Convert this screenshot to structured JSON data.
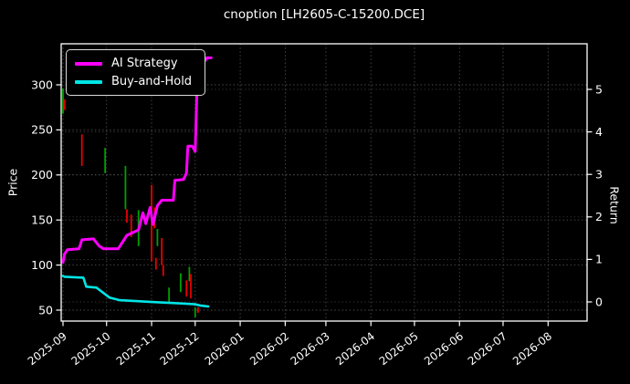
{
  "title": "cnoption [LH2605-C-15200.DCE]",
  "legend": {
    "items": [
      {
        "label": "AI Strategy",
        "color": "#ff00ff"
      },
      {
        "label": "Buy-and-Hold",
        "color": "#00e5e5"
      }
    ]
  },
  "colors": {
    "background": "#000000",
    "foreground": "#ffffff",
    "grid": "#4a4a4a",
    "ai_strategy_line": "#ff00ff",
    "buy_and_hold_line": "#00e5e5",
    "bar_up": "#00a000",
    "bar_down": "#e80000"
  },
  "chart_data": {
    "type": "line",
    "subtype": "equity curves with high-low price bars (candlestick wicks)",
    "title": "cnoption [LH2605-C-15200.DCE]",
    "x_axis": {
      "unit": "date",
      "tick_labels": [
        "2025-09",
        "2025-10",
        "2025-11",
        "2025-12",
        "2026-01",
        "2026-02",
        "2026-03",
        "2026-04",
        "2026-05",
        "2026-06",
        "2026-07",
        "2026-08"
      ],
      "tick_label_rotation_deg": -38
    },
    "y_left": {
      "label": "Price",
      "ticks": [
        50,
        100,
        150,
        200,
        250,
        300
      ],
      "range": [
        38,
        345
      ]
    },
    "y_right": {
      "label": "Return",
      "ticks": [
        0,
        1,
        2,
        3,
        4,
        5
      ],
      "range": [
        -0.45,
        6.08
      ]
    },
    "grid": "dotted, both axes tick sets",
    "legend_position": "upper-left",
    "series": [
      {
        "name": "AI Strategy",
        "axis": "left-price-units",
        "color": "#ff00ff",
        "points": [
          [
            "2025-09-01",
            103
          ],
          [
            "2025-09-02",
            112
          ],
          [
            "2025-09-04",
            117
          ],
          [
            "2025-09-12",
            118
          ],
          [
            "2025-09-14",
            128
          ],
          [
            "2025-09-22",
            129
          ],
          [
            "2025-09-26",
            121
          ],
          [
            "2025-09-29",
            118
          ],
          [
            "2025-10-09",
            118
          ],
          [
            "2025-10-15",
            133
          ],
          [
            "2025-10-19",
            136
          ],
          [
            "2025-10-23",
            139
          ],
          [
            "2025-10-26",
            158
          ],
          [
            "2025-10-28",
            146
          ],
          [
            "2025-10-31",
            164
          ],
          [
            "2025-11-02",
            145
          ],
          [
            "2025-11-05",
            166
          ],
          [
            "2025-11-08",
            172
          ],
          [
            "2025-11-16",
            172
          ],
          [
            "2025-11-17",
            194
          ],
          [
            "2025-11-23",
            195
          ],
          [
            "2025-11-25",
            202
          ],
          [
            "2025-11-26",
            232
          ],
          [
            "2025-11-29",
            232
          ],
          [
            "2025-12-01",
            226
          ],
          [
            "2025-12-02",
            280
          ],
          [
            "2025-12-03",
            325
          ],
          [
            "2025-12-08",
            327
          ],
          [
            "2025-12-09",
            330
          ],
          [
            "2025-12-12",
            330
          ]
        ]
      },
      {
        "name": "Buy-and-Hold",
        "axis": "left-price-units",
        "color": "#00e5e5",
        "points": [
          [
            "2025-09-01",
            88
          ],
          [
            "2025-09-02",
            87
          ],
          [
            "2025-09-15",
            86
          ],
          [
            "2025-09-17",
            76
          ],
          [
            "2025-09-24",
            75
          ],
          [
            "2025-10-03",
            64
          ],
          [
            "2025-10-10",
            61
          ],
          [
            "2025-11-01",
            59
          ],
          [
            "2025-11-20",
            57.5
          ],
          [
            "2025-12-01",
            56.5
          ],
          [
            "2025-12-05",
            55
          ],
          [
            "2025-12-10",
            54
          ]
        ]
      }
    ],
    "price_bars": [
      {
        "date": "2025-09-01",
        "dir": "up",
        "high": 296,
        "low": 268
      },
      {
        "date": "2025-09-02",
        "dir": "down",
        "high": 284,
        "low": 272
      },
      {
        "date": "2025-09-14",
        "dir": "down",
        "high": 245,
        "low": 210
      },
      {
        "date": "2025-09-30",
        "dir": "up",
        "high": 230,
        "low": 202
      },
      {
        "date": "2025-10-14",
        "dir": "up",
        "high": 210,
        "low": 162
      },
      {
        "date": "2025-10-15",
        "dir": "down",
        "high": 162,
        "low": 147
      },
      {
        "date": "2025-10-18",
        "dir": "down",
        "high": 156,
        "low": 131
      },
      {
        "date": "2025-10-23",
        "dir": "up",
        "high": 161,
        "low": 121
      },
      {
        "date": "2025-11-01",
        "dir": "down",
        "high": 189,
        "low": 104
      },
      {
        "date": "2025-11-03",
        "dir": "down",
        "high": 164,
        "low": 141
      },
      {
        "date": "2025-11-04",
        "dir": "down",
        "high": 108,
        "low": 95
      },
      {
        "date": "2025-11-05",
        "dir": "up",
        "high": 140,
        "low": 121
      },
      {
        "date": "2025-11-08",
        "dir": "down",
        "high": 130,
        "low": 100
      },
      {
        "date": "2025-11-09",
        "dir": "down",
        "high": 100,
        "low": 88
      },
      {
        "date": "2025-11-13",
        "dir": "up",
        "high": 75,
        "low": 58
      },
      {
        "date": "2025-11-21",
        "dir": "up",
        "high": 91,
        "low": 70
      },
      {
        "date": "2025-11-25",
        "dir": "down",
        "high": 83,
        "low": 65
      },
      {
        "date": "2025-11-27",
        "dir": "up",
        "high": 98,
        "low": 82
      },
      {
        "date": "2025-11-28",
        "dir": "down",
        "high": 90,
        "low": 63
      },
      {
        "date": "2025-12-01",
        "dir": "up",
        "high": 53,
        "low": 42
      },
      {
        "date": "2025-12-03",
        "dir": "down",
        "high": 53,
        "low": 47
      }
    ]
  }
}
